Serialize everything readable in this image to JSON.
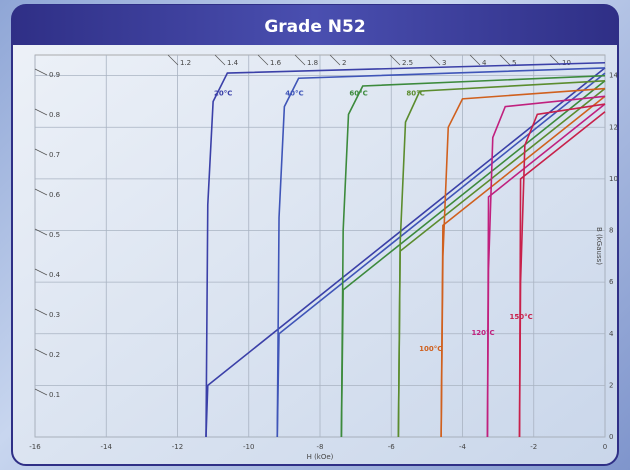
{
  "chart_data": {
    "type": "line",
    "title": "Grade N52",
    "x_label": "H (kOe)",
    "y_label": "B (kGauss)",
    "xlim": [
      -16,
      0
    ],
    "xticks": [
      -16,
      -14,
      -12,
      -10,
      -8,
      -6,
      -4,
      -2,
      0
    ],
    "ylim": [
      0,
      14.8
    ],
    "yticks": [
      0,
      2,
      4,
      6,
      8,
      10,
      12,
      14
    ],
    "grid": true,
    "permeance_labels_left": [
      "0.9",
      "0.8",
      "0.7",
      "0.6",
      "0.5",
      "0.4",
      "0.3",
      "0.2",
      "0.1"
    ],
    "permeance_labels_top": [
      "1.2",
      "1.4",
      "1.6",
      "1.8",
      "2",
      "2.5",
      "3",
      "4",
      "5",
      "10"
    ],
    "series": [
      {
        "name": "20°C",
        "color": "#3b40a8",
        "x": [
          0,
          -10.6,
          -11.0,
          -11.15,
          -11.2
        ],
        "values": [
          14.5,
          14.1,
          13.0,
          9.0,
          0
        ],
        "normal_x": [
          0,
          -11.15,
          -11.2
        ],
        "normal_values": [
          14.3,
          2.0,
          0
        ]
      },
      {
        "name": "40°C",
        "color": "#3f55b8",
        "x": [
          0,
          -8.6,
          -9.0,
          -9.15,
          -9.2
        ],
        "values": [
          14.3,
          13.9,
          12.8,
          8.5,
          0
        ],
        "normal_x": [
          0,
          -9.15,
          -9.2
        ],
        "normal_values": [
          14.1,
          4.0,
          0
        ]
      },
      {
        "name": "60°C",
        "color": "#3c8a3c",
        "x": [
          0,
          -6.8,
          -7.2,
          -7.35,
          -7.4
        ],
        "values": [
          14.0,
          13.6,
          12.5,
          8.0,
          0
        ],
        "normal_x": [
          0,
          -7.35,
          -7.4
        ],
        "normal_values": [
          13.8,
          5.7,
          0
        ]
      },
      {
        "name": "80°C",
        "color": "#5b8c2e",
        "x": [
          0,
          -5.2,
          -5.6,
          -5.75,
          -5.8
        ],
        "values": [
          13.8,
          13.4,
          12.2,
          7.5,
          0
        ],
        "normal_x": [
          0,
          -5.75,
          -5.8
        ],
        "normal_values": [
          13.5,
          7.2,
          0
        ]
      },
      {
        "name": "100°C",
        "color": "#d0601e",
        "x": [
          0,
          -4.0,
          -4.4,
          -4.55,
          -4.6
        ],
        "values": [
          13.5,
          13.1,
          12.0,
          7.0,
          0
        ],
        "normal_x": [
          0,
          -4.55,
          -4.6
        ],
        "normal_values": [
          13.2,
          8.2,
          0
        ]
      },
      {
        "name": "120°C",
        "color": "#c0207e",
        "x": [
          0,
          -2.8,
          -3.15,
          -3.27,
          -3.3
        ],
        "values": [
          13.2,
          12.8,
          11.6,
          6.5,
          0
        ],
        "normal_x": [
          0,
          -3.27,
          -3.3
        ],
        "normal_values": [
          12.9,
          9.3,
          0
        ]
      },
      {
        "name": "150°C",
        "color": "#c8204a",
        "x": [
          0,
          -1.9,
          -2.25,
          -2.37,
          -2.4
        ],
        "values": [
          12.9,
          12.5,
          11.3,
          6.0,
          0
        ],
        "normal_x": [
          0,
          -2.37,
          -2.4
        ],
        "normal_values": [
          12.6,
          10.0,
          0
        ]
      }
    ]
  }
}
